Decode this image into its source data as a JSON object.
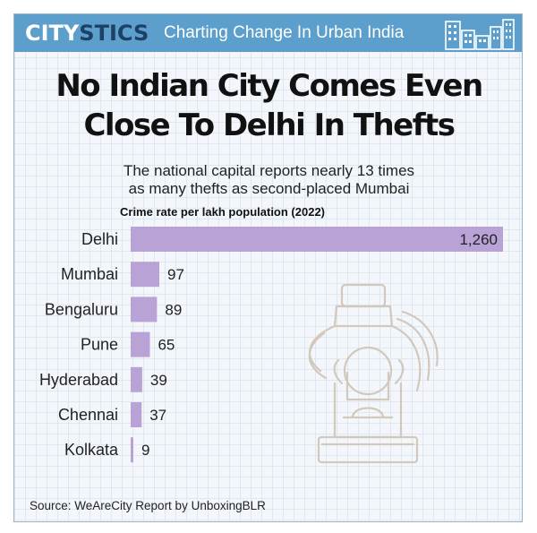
{
  "header": {
    "brand_part1": "CITY",
    "brand_part2": "STICS",
    "tagline": "Charting Change In Urban India"
  },
  "title_line1": "No Indian City Comes Even",
  "title_line2": "Close To Delhi In Thefts",
  "subtitle_line1": "The national capital reports nearly 13 times",
  "subtitle_line2": "as many thefts as second-placed Mumbai",
  "chart_data": {
    "type": "bar",
    "orientation": "horizontal",
    "title": "Crime rate per lakh population (2022)",
    "categories": [
      "Delhi",
      "Mumbai",
      "Bengaluru",
      "Pune",
      "Hyderabad",
      "Chennai",
      "Kolkata"
    ],
    "values": [
      1260,
      97,
      89,
      65,
      39,
      37,
      9
    ],
    "value_labels": [
      "1,260",
      "97",
      "89",
      "65",
      "39",
      "37",
      "9"
    ],
    "xlim": [
      0,
      1260
    ],
    "grid": false,
    "legend": "none",
    "bar_color": "#b9a3d6"
  },
  "source": "Source: WeAreCity Report by UnboxingBLR",
  "colors": {
    "banner": "#5c9fcc",
    "brand_dark": "#1e3f66",
    "watermark": "#d2c8bb"
  },
  "icons": {
    "skyline": "city-skyline-icon",
    "watermark": "hand-grabbing-money-bag-icon"
  }
}
